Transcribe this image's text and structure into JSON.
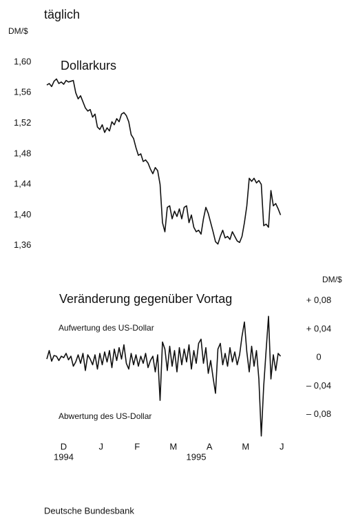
{
  "header": "täglich",
  "source": "Deutsche Bundesbank",
  "chart_data": [
    {
      "type": "line",
      "title": "Dollarkurs",
      "ylabel": "DM/$",
      "xlim": [
        0,
        98
      ],
      "ylim": [
        1.33,
        1.6
      ],
      "yticks": [
        {
          "value": 1.6,
          "label": "1,60"
        },
        {
          "value": 1.56,
          "label": "1,56"
        },
        {
          "value": 1.52,
          "label": "1,52"
        },
        {
          "value": 1.48,
          "label": "1,48"
        },
        {
          "value": 1.44,
          "label": "1,44"
        },
        {
          "value": 1.4,
          "label": "1,40"
        },
        {
          "value": 1.36,
          "label": "1,36"
        }
      ],
      "grid": false,
      "series": [
        {
          "color": "#111111",
          "values": [
            1.57,
            1.572,
            1.568,
            1.575,
            1.578,
            1.572,
            1.574,
            1.571,
            1.576,
            1.574,
            1.575,
            1.576,
            1.56,
            1.552,
            1.556,
            1.548,
            1.54,
            1.536,
            1.538,
            1.528,
            1.532,
            1.515,
            1.512,
            1.518,
            1.508,
            1.514,
            1.51,
            1.522,
            1.518,
            1.526,
            1.522,
            1.532,
            1.534,
            1.53,
            1.522,
            1.505,
            1.5,
            1.488,
            1.478,
            1.48,
            1.47,
            1.472,
            1.468,
            1.46,
            1.454,
            1.462,
            1.458,
            1.44,
            1.39,
            1.378,
            1.41,
            1.412,
            1.395,
            1.405,
            1.398,
            1.408,
            1.395,
            1.41,
            1.412,
            1.39,
            1.4,
            1.384,
            1.378,
            1.38,
            1.375,
            1.395,
            1.41,
            1.402,
            1.39,
            1.378,
            1.365,
            1.362,
            1.372,
            1.38,
            1.37,
            1.372,
            1.368,
            1.378,
            1.372,
            1.366,
            1.364,
            1.372,
            1.39,
            1.412,
            1.448,
            1.444,
            1.448,
            1.442,
            1.445,
            1.44,
            1.386,
            1.388,
            1.384,
            1.432,
            1.412,
            1.415,
            1.408,
            1.4
          ]
        }
      ]
    },
    {
      "type": "line",
      "title": "Veränderung gegenüber Vortag",
      "ylabel": "DM/$",
      "annotations": [
        "Aufwertung des US-Dollar",
        "Abwertung des US-Dollar"
      ],
      "xlim": [
        0,
        98
      ],
      "ylim": [
        -0.12,
        0.1
      ],
      "yticks": [
        {
          "value": 0.08,
          "label": "+ 0,08"
        },
        {
          "value": 0.04,
          "label": "+ 0,04"
        },
        0,
        {
          "value": -0.04,
          "label": "– 0,04"
        },
        {
          "value": -0.08,
          "label": "– 0,08"
        }
      ],
      "xticks": [
        {
          "value": 7,
          "label": "D"
        },
        {
          "value": 22.5,
          "label": "J"
        },
        {
          "value": 37.5,
          "label": "F"
        },
        {
          "value": 52.5,
          "label": "M"
        },
        {
          "value": 67.5,
          "label": "A"
        },
        {
          "value": 82.5,
          "label": "M"
        },
        {
          "value": 97.5,
          "label": "J"
        }
      ],
      "year_labels": [
        {
          "value": 7,
          "label": "1994"
        },
        {
          "value": 62,
          "label": "1995"
        }
      ],
      "grid": false,
      "series": [
        {
          "color": "#111111",
          "values": [
            -0.002,
            0.01,
            -0.005,
            0.003,
            0.002,
            -0.004,
            0.002,
            0.0,
            0.006,
            -0.003,
            0.002,
            -0.012,
            -0.006,
            0.004,
            -0.008,
            0.006,
            -0.018,
            0.004,
            -0.002,
            -0.01,
            0.004,
            -0.016,
            0.006,
            -0.01,
            0.008,
            -0.006,
            0.01,
            -0.014,
            0.012,
            -0.004,
            0.014,
            -0.002,
            0.018,
            -0.008,
            -0.016,
            0.006,
            -0.01,
            0.004,
            -0.012,
            0.002,
            -0.008,
            0.006,
            -0.014,
            -0.004,
            0.002,
            -0.02,
            0.004,
            -0.06,
            0.022,
            0.012,
            -0.018,
            0.016,
            -0.012,
            0.01,
            -0.02,
            0.014,
            -0.01,
            0.012,
            -0.006,
            0.018,
            -0.016,
            0.01,
            -0.008,
            0.02,
            0.026,
            -0.008,
            0.014,
            -0.022,
            -0.004,
            -0.028,
            -0.05,
            0.012,
            0.02,
            -0.01,
            0.006,
            -0.012,
            0.014,
            -0.006,
            0.008,
            -0.01,
            0.004,
            0.03,
            0.05,
            0.008,
            -0.02,
            0.016,
            -0.012,
            0.01,
            -0.03,
            -0.11,
            -0.04,
            0.01,
            0.058,
            -0.03,
            0.004,
            -0.018,
            0.006,
            0.002
          ]
        }
      ]
    }
  ]
}
